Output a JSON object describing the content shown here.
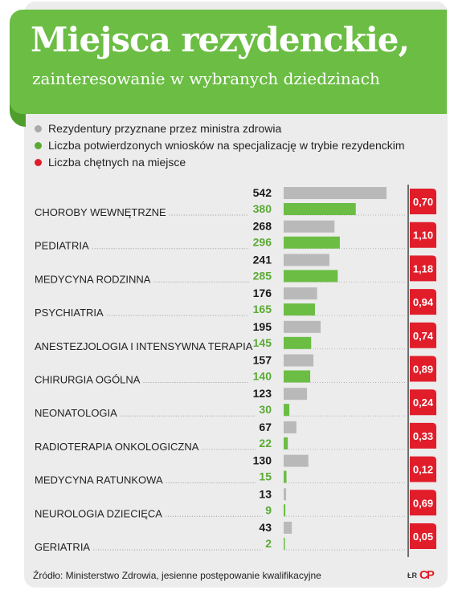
{
  "header": {
    "title": "Miejsca rezydenckie,",
    "subtitle": "zainteresowanie w wybranych dziedzinach"
  },
  "colors": {
    "banner": "#6bbd44",
    "gray": "#b9b9b9",
    "green": "#6bbd44",
    "red": "#e11d2a",
    "green_text": "#5aaa34"
  },
  "legend": [
    {
      "label": "Rezydentury przyznane przez ministra zdrowia",
      "color": "#a9a9a9"
    },
    {
      "label": "Liczba potwierdzonych wniosków na specjalizację w trybie rezydenckim",
      "color": "#5aaa34"
    },
    {
      "label": "Liczba chętnych na miejsce",
      "color": "#e11d2a"
    }
  ],
  "chart_data": {
    "type": "bar",
    "orientation": "horizontal",
    "categories": [
      "CHOROBY WEWNĘTRZNE",
      "PEDIATRIA",
      "MEDYCYNA RODZINNA",
      "PSYCHIATRIA",
      "ANESTEZJOLOGIA I INTENSYWNA TERAPIA",
      "CHIRURGIA OGÓLNA",
      "NEONATOLOGIA",
      "RADIOTERAPIA ONKOLOGICZNA",
      "MEDYCYNA RATUNKOWA",
      "NEUROLOGIA DZIECIĘCA",
      "GERIATRIA"
    ],
    "series": [
      {
        "name": "Rezydentury przyznane przez ministra zdrowia",
        "values": [
          542,
          268,
          241,
          176,
          195,
          157,
          123,
          67,
          130,
          13,
          43
        ]
      },
      {
        "name": "Liczba potwierdzonych wniosków na specjalizację w trybie rezydenckim",
        "values": [
          380,
          296,
          285,
          165,
          145,
          140,
          30,
          22,
          15,
          9,
          2
        ]
      },
      {
        "name": "Liczba chętnych na miejsce",
        "values": [
          "0,70",
          "1,10",
          "1,18",
          "0,94",
          "0,74",
          "0,89",
          "0,24",
          "0,33",
          "0,12",
          "0,69",
          "0,05"
        ]
      }
    ],
    "title": "Miejsca rezydenckie,",
    "subtitle": "zainteresowanie w wybranych dziedzinach",
    "legend_position": "top-left",
    "grid": false
  },
  "footer": {
    "source": "Źródło: Ministerstwo Zdrowia, jesienne postępowanie kwalifikacyjne",
    "logo_small": "ŁR",
    "logo_mark": "CP"
  }
}
